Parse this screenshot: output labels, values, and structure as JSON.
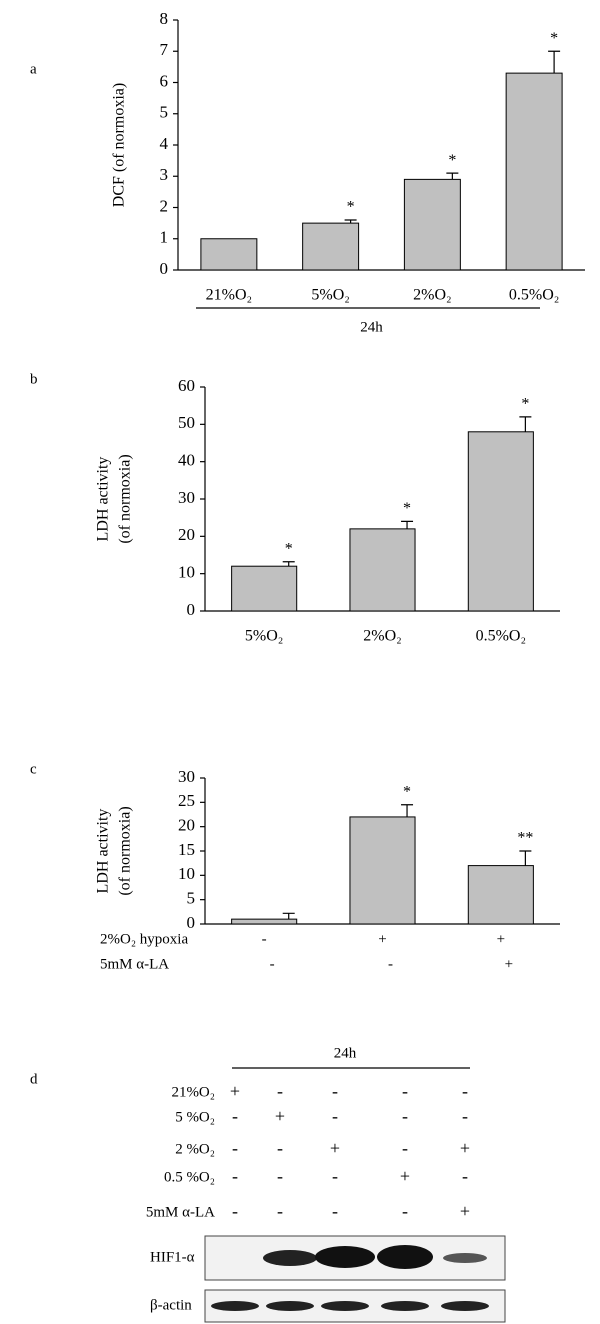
{
  "chart_data": [
    {
      "type": "bar",
      "panel": "a",
      "y_label": [
        "DCF (of normoxia)"
      ],
      "categories": [
        "21%O₂",
        "5%O₂",
        "2%O₂",
        "0.5%O₂"
      ],
      "values": [
        1,
        1.5,
        2.9,
        6.3
      ],
      "errors": [
        null,
        0.1,
        0.2,
        0.7
      ],
      "color": "#c0c0c0",
      "annotations": [
        {
          "text": "*",
          "category": 1
        },
        {
          "text": "*",
          "category": 2
        },
        {
          "text": "*",
          "category": 3
        }
      ],
      "group_label": "24h",
      "ylim": [
        0,
        8
      ],
      "yticks": [
        0,
        1,
        2,
        3,
        4,
        5,
        6,
        7,
        8
      ]
    },
    {
      "type": "bar",
      "panel": "b",
      "y_label": [
        "LDH activity",
        "(of normoxia)"
      ],
      "categories": [
        "5%O₂",
        "2%O₂",
        "0.5%O₂"
      ],
      "values": [
        12,
        22,
        48
      ],
      "errors": [
        1.2,
        2,
        4
      ],
      "color": "#c0c0c0",
      "annotations": [
        {
          "text": "*",
          "category": 0
        },
        {
          "text": "*",
          "category": 1
        },
        {
          "text": "*",
          "category": 2
        }
      ],
      "ylim": [
        0,
        60
      ],
      "yticks": [
        0,
        10,
        20,
        30,
        40,
        50,
        60
      ]
    },
    {
      "type": "bar",
      "panel": "c",
      "y_label": [
        "LDH activity",
        "(of normoxia)"
      ],
      "categories": [
        null,
        null,
        null
      ],
      "values": [
        1,
        22,
        12
      ],
      "errors": [
        1.2,
        2.5,
        3
      ],
      "color": "#c0c0c0",
      "annotations": [
        {
          "text": "*",
          "category": 1
        },
        {
          "text": "**",
          "category": 2
        }
      ],
      "treatments": [
        {
          "label": "2%O₂ hypoxia",
          "signs": [
            "-",
            "+",
            "+"
          ]
        },
        {
          "label": "5mM α-LA",
          "signs": [
            "-",
            "-",
            "+"
          ]
        }
      ],
      "ylim": [
        0,
        30
      ],
      "yticks": [
        0,
        5,
        10,
        15,
        20,
        25,
        30
      ]
    }
  ],
  "blot": {
    "panel": "d",
    "time": "24h",
    "conditions": [
      {
        "label": "21%O₂",
        "signs": [
          "+",
          "-",
          "-",
          "-",
          "-"
        ]
      },
      {
        "label": "5 %O₂",
        "signs": [
          "-",
          "+",
          "-",
          "-",
          "-"
        ]
      },
      {
        "label": "2 %O₂",
        "signs": [
          "-",
          "-",
          "+",
          "-",
          "+"
        ]
      },
      {
        "label": "0.5 %O₂",
        "signs": [
          "-",
          "-",
          "-",
          "+",
          "-"
        ]
      },
      {
        "label": "5mM α-LA",
        "signs": [
          "-",
          "-",
          "-",
          "-",
          "+"
        ]
      }
    ],
    "bands": [
      "HIF1-α",
      "β-actin"
    ]
  }
}
